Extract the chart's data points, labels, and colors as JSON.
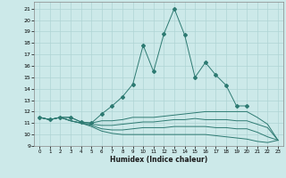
{
  "xlabel": "Humidex (Indice chaleur)",
  "bg_color": "#cce9e9",
  "grid_color": "#afd4d4",
  "line_color": "#2d7a72",
  "xlim": [
    -0.5,
    23.5
  ],
  "ylim": [
    9,
    21.6
  ],
  "yticks": [
    9,
    10,
    11,
    12,
    13,
    14,
    15,
    16,
    17,
    18,
    19,
    20,
    21
  ],
  "xticks": [
    0,
    1,
    2,
    3,
    4,
    5,
    6,
    7,
    8,
    9,
    10,
    11,
    12,
    13,
    14,
    15,
    16,
    17,
    18,
    19,
    20,
    21,
    22,
    23
  ],
  "curve1_x": [
    0,
    1,
    2,
    3,
    4,
    5,
    6,
    7,
    8,
    9,
    10,
    11,
    12,
    13,
    14,
    15,
    16,
    17,
    18,
    19,
    20
  ],
  "curve1_y": [
    11.5,
    11.3,
    11.5,
    11.5,
    11.1,
    11.0,
    11.8,
    12.5,
    13.3,
    14.4,
    17.8,
    15.5,
    18.8,
    21.0,
    18.7,
    15.0,
    16.3,
    15.2,
    14.3,
    12.5,
    12.5
  ],
  "curve2_x": [
    0,
    1,
    2,
    3,
    4,
    5,
    6,
    7,
    8,
    9,
    10,
    11,
    12,
    13,
    14,
    15,
    16,
    17,
    18,
    19,
    20,
    21,
    22,
    23
  ],
  "curve2_y": [
    11.5,
    11.3,
    11.5,
    11.5,
    11.1,
    11.0,
    11.2,
    11.2,
    11.3,
    11.5,
    11.5,
    11.5,
    11.6,
    11.7,
    11.8,
    11.9,
    12.0,
    12.0,
    12.0,
    12.0,
    12.0,
    11.5,
    10.9,
    9.5
  ],
  "curve3_x": [
    0,
    1,
    2,
    3,
    4,
    5,
    6,
    7,
    8,
    9,
    10,
    11,
    12,
    13,
    14,
    15,
    16,
    17,
    18,
    19,
    20,
    21,
    22,
    23
  ],
  "curve3_y": [
    11.5,
    11.3,
    11.5,
    11.2,
    11.0,
    10.9,
    10.8,
    10.8,
    10.9,
    11.0,
    11.1,
    11.1,
    11.2,
    11.3,
    11.3,
    11.4,
    11.3,
    11.3,
    11.3,
    11.2,
    11.2,
    10.9,
    10.6,
    9.5
  ],
  "curve4_x": [
    0,
    1,
    2,
    3,
    4,
    5,
    6,
    7,
    8,
    9,
    10,
    11,
    12,
    13,
    14,
    15,
    16,
    17,
    18,
    19,
    20,
    21,
    22,
    23
  ],
  "curve4_y": [
    11.5,
    11.3,
    11.5,
    11.2,
    11.0,
    10.8,
    10.5,
    10.4,
    10.4,
    10.5,
    10.6,
    10.6,
    10.6,
    10.7,
    10.7,
    10.7,
    10.7,
    10.6,
    10.6,
    10.5,
    10.5,
    10.2,
    9.8,
    9.5
  ],
  "curve5_x": [
    0,
    1,
    2,
    3,
    4,
    5,
    6,
    7,
    8,
    9,
    10,
    11,
    12,
    13,
    14,
    15,
    16,
    17,
    18,
    19,
    20,
    21,
    22,
    23
  ],
  "curve5_y": [
    11.5,
    11.3,
    11.5,
    11.2,
    11.0,
    10.7,
    10.3,
    10.1,
    10.0,
    10.0,
    10.0,
    10.0,
    10.0,
    10.0,
    10.0,
    10.0,
    10.0,
    9.9,
    9.8,
    9.7,
    9.6,
    9.4,
    9.3,
    9.5
  ]
}
